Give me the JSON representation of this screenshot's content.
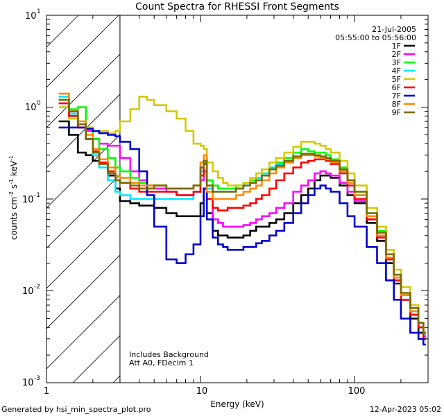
{
  "chart_data": {
    "type": "line",
    "title": "Count Spectra for RHESSI Front Segments",
    "xlabel": "Energy (keV)",
    "ylabel": "counts cm^-2 s^-1 keV^-1",
    "xscale": "log",
    "yscale": "log",
    "xlim": [
      1,
      300
    ],
    "ylim": [
      0.001,
      10
    ],
    "x_ticks": [
      1,
      10,
      100
    ],
    "x_tick_labels": [
      "1",
      "10",
      "100"
    ],
    "y_ticks": [
      0.001,
      0.01,
      0.1,
      1,
      10
    ],
    "y_tick_labels": [
      {
        "base": "10",
        "exp": "-3"
      },
      {
        "base": "10",
        "exp": "-2"
      },
      {
        "base": "10",
        "exp": "-1"
      },
      {
        "base": "10",
        "exp": "0"
      },
      {
        "base": "10",
        "exp": "1"
      }
    ],
    "attenuated_region_xmax": 3,
    "date": "21-Jul-2005",
    "time_range": "05:55:00 to 05:56:00",
    "annotations": [
      "Includes Background",
      "Att A0, FDecim 1"
    ],
    "series": [
      {
        "name": "1F",
        "color": "#000000",
        "x": [
          1.2,
          1.4,
          1.6,
          1.8,
          2,
          2.2,
          2.5,
          2.8,
          3,
          3.5,
          4,
          4.5,
          5,
          6,
          7,
          8,
          9,
          10,
          10.5,
          11,
          12,
          13,
          14,
          15,
          17,
          19,
          21,
          23,
          25,
          28,
          31,
          35,
          40,
          45,
          50,
          55,
          60,
          65,
          70,
          80,
          90,
          100,
          120,
          140,
          160,
          180,
          200,
          230,
          260,
          280
        ],
        "y": [
          0.7,
          0.5,
          0.32,
          0.3,
          0.26,
          0.25,
          0.18,
          0.13,
          0.095,
          0.09,
          0.085,
          0.085,
          0.08,
          0.07,
          0.065,
          0.065,
          0.065,
          0.09,
          0.13,
          0.07,
          0.045,
          0.04,
          0.04,
          0.038,
          0.038,
          0.04,
          0.045,
          0.05,
          0.05,
          0.055,
          0.06,
          0.07,
          0.09,
          0.11,
          0.13,
          0.16,
          0.18,
          0.18,
          0.17,
          0.14,
          0.11,
          0.09,
          0.055,
          0.035,
          0.02,
          0.012,
          0.008,
          0.005,
          0.0035,
          0.003
        ]
      },
      {
        "name": "2F",
        "color": "#ff00ff",
        "x": [
          1.2,
          1.4,
          1.6,
          1.8,
          2,
          2.2,
          2.5,
          2.8,
          3,
          3.5,
          4,
          4.5,
          5,
          6,
          7,
          8,
          9,
          10,
          10.5,
          11,
          12,
          13,
          14,
          15,
          17,
          19,
          21,
          23,
          25,
          28,
          31,
          35,
          40,
          45,
          50,
          55,
          60,
          65,
          70,
          80,
          90,
          100,
          120,
          140,
          160,
          180,
          200,
          230,
          260,
          280
        ],
        "y": [
          1.1,
          0.85,
          0.6,
          0.55,
          0.45,
          0.4,
          0.38,
          0.38,
          0.28,
          0.2,
          0.16,
          0.14,
          0.13,
          0.12,
          0.11,
          0.11,
          0.12,
          0.16,
          0.2,
          0.1,
          0.06,
          0.055,
          0.05,
          0.05,
          0.05,
          0.052,
          0.055,
          0.06,
          0.065,
          0.07,
          0.08,
          0.09,
          0.12,
          0.14,
          0.16,
          0.19,
          0.2,
          0.19,
          0.18,
          0.15,
          0.12,
          0.095,
          0.06,
          0.038,
          0.022,
          0.013,
          0.008,
          0.0055,
          0.004,
          0.0032
        ]
      },
      {
        "name": "3F",
        "color": "#00ff00",
        "x": [
          1.2,
          1.4,
          1.6,
          1.8,
          2,
          2.2,
          2.5,
          2.8,
          3,
          3.5,
          4,
          4.5,
          5,
          6,
          7,
          8,
          9,
          10,
          10.5,
          11,
          12,
          13,
          14,
          15,
          17,
          19,
          21,
          23,
          25,
          28,
          31,
          35,
          40,
          45,
          50,
          55,
          60,
          65,
          70,
          80,
          90,
          100,
          120,
          140,
          160,
          180,
          200,
          230,
          260,
          280
        ],
        "y": [
          1.2,
          0.95,
          1.0,
          0.6,
          0.45,
          0.35,
          0.28,
          0.22,
          0.2,
          0.17,
          0.15,
          0.14,
          0.14,
          0.13,
          0.13,
          0.13,
          0.14,
          0.2,
          0.25,
          0.16,
          0.14,
          0.13,
          0.13,
          0.13,
          0.14,
          0.15,
          0.16,
          0.17,
          0.19,
          0.22,
          0.25,
          0.28,
          0.32,
          0.35,
          0.33,
          0.32,
          0.32,
          0.3,
          0.27,
          0.22,
          0.16,
          0.12,
          0.07,
          0.045,
          0.025,
          0.015,
          0.009,
          0.006,
          0.004,
          0.0033
        ]
      },
      {
        "name": "4F",
        "color": "#00e5ff",
        "x": [
          1.2,
          1.4,
          1.6,
          1.8,
          2,
          2.2,
          2.5,
          2.8,
          3,
          3.5,
          4,
          4.5,
          5,
          6,
          7,
          8,
          9,
          10,
          10.5,
          11,
          12,
          13,
          14,
          15,
          17,
          19,
          21,
          23,
          25,
          28,
          31,
          35,
          40,
          45,
          50,
          55,
          60,
          65,
          70,
          80,
          90,
          100,
          120,
          140,
          160,
          180,
          200,
          230,
          260,
          280
        ],
        "y": [
          1.3,
          0.85,
          0.65,
          0.45,
          0.3,
          0.22,
          0.16,
          0.12,
          0.11,
          0.1,
          0.1,
          0.1,
          0.1,
          0.1,
          0.1,
          0.1,
          0.12,
          0.2,
          0.25,
          0.13,
          0.12,
          0.12,
          0.12,
          0.12,
          0.13,
          0.14,
          0.15,
          0.17,
          0.19,
          0.22,
          0.24,
          0.26,
          0.28,
          0.3,
          0.3,
          0.29,
          0.28,
          0.27,
          0.25,
          0.2,
          0.15,
          0.11,
          0.065,
          0.04,
          0.023,
          0.014,
          0.009,
          0.006,
          0.004,
          0.0033
        ]
      },
      {
        "name": "5F",
        "color": "#d4c900",
        "x": [
          1.2,
          1.4,
          1.6,
          1.8,
          2,
          2.2,
          2.5,
          2.8,
          3,
          3.5,
          4,
          4.5,
          5,
          6,
          7,
          8,
          9,
          10,
          10.5,
          11,
          12,
          13,
          14,
          15,
          17,
          19,
          21,
          23,
          25,
          28,
          31,
          35,
          40,
          45,
          50,
          55,
          60,
          65,
          70,
          80,
          90,
          100,
          120,
          140,
          160,
          180,
          200,
          230,
          260,
          280
        ],
        "y": [
          1.0,
          0.75,
          0.6,
          0.6,
          0.55,
          0.55,
          0.52,
          0.55,
          0.7,
          0.95,
          1.3,
          1.2,
          1.05,
          0.9,
          0.75,
          0.55,
          0.4,
          0.38,
          0.35,
          0.25,
          0.2,
          0.17,
          0.15,
          0.14,
          0.14,
          0.15,
          0.17,
          0.19,
          0.21,
          0.25,
          0.28,
          0.32,
          0.37,
          0.42,
          0.42,
          0.4,
          0.38,
          0.35,
          0.32,
          0.26,
          0.19,
          0.14,
          0.08,
          0.05,
          0.028,
          0.017,
          0.011,
          0.007,
          0.0045,
          0.0035
        ]
      },
      {
        "name": "6F",
        "color": "#ff0000",
        "x": [
          1.2,
          1.4,
          1.6,
          1.8,
          2,
          2.2,
          2.5,
          2.8,
          3,
          3.5,
          4,
          4.5,
          5,
          6,
          7,
          8,
          9,
          10,
          10.5,
          11,
          12,
          13,
          14,
          15,
          17,
          19,
          21,
          23,
          25,
          28,
          31,
          35,
          40,
          45,
          50,
          55,
          60,
          65,
          70,
          80,
          90,
          100,
          120,
          140,
          160,
          180,
          200,
          230,
          260,
          280
        ],
        "y": [
          1.1,
          0.8,
          0.6,
          0.45,
          0.33,
          0.25,
          0.2,
          0.16,
          0.15,
          0.13,
          0.12,
          0.12,
          0.12,
          0.12,
          0.11,
          0.11,
          0.12,
          0.18,
          0.24,
          0.1,
          0.08,
          0.075,
          0.075,
          0.08,
          0.08,
          0.085,
          0.09,
          0.1,
          0.11,
          0.13,
          0.16,
          0.19,
          0.22,
          0.25,
          0.26,
          0.27,
          0.27,
          0.26,
          0.24,
          0.19,
          0.14,
          0.1,
          0.06,
          0.038,
          0.022,
          0.013,
          0.008,
          0.0055,
          0.004,
          0.003
        ]
      },
      {
        "name": "7F",
        "color": "#0000cc",
        "x": [
          1.2,
          1.4,
          1.6,
          1.8,
          2,
          2.2,
          2.5,
          2.8,
          3,
          3.5,
          4,
          4.5,
          5,
          6,
          7,
          8,
          9,
          10,
          10.5,
          11,
          12,
          13,
          14,
          15,
          17,
          19,
          21,
          23,
          25,
          28,
          31,
          35,
          40,
          45,
          50,
          55,
          60,
          65,
          70,
          80,
          90,
          100,
          120,
          140,
          160,
          180,
          200,
          230,
          260,
          280
        ],
        "y": [
          0.6,
          0.6,
          0.6,
          0.58,
          0.55,
          0.52,
          0.5,
          0.48,
          0.42,
          0.35,
          0.2,
          0.11,
          0.05,
          0.022,
          0.02,
          0.025,
          0.032,
          0.065,
          0.13,
          0.06,
          0.038,
          0.032,
          0.03,
          0.028,
          0.028,
          0.03,
          0.03,
          0.033,
          0.035,
          0.04,
          0.045,
          0.055,
          0.07,
          0.09,
          0.11,
          0.13,
          0.14,
          0.13,
          0.12,
          0.09,
          0.065,
          0.05,
          0.03,
          0.02,
          0.013,
          0.008,
          0.005,
          0.0035,
          0.003,
          0.0026
        ]
      },
      {
        "name": "8F",
        "color": "#ff8800",
        "x": [
          1.2,
          1.4,
          1.6,
          1.8,
          2,
          2.2,
          2.5,
          2.8,
          3,
          3.5,
          4,
          4.5,
          5,
          6,
          7,
          8,
          9,
          10,
          10.5,
          11,
          12,
          13,
          14,
          15,
          17,
          19,
          21,
          23,
          25,
          28,
          31,
          35,
          40,
          45,
          50,
          55,
          60,
          65,
          70,
          80,
          90,
          100,
          120,
          140,
          160,
          180,
          200,
          230,
          260,
          280
        ],
        "y": [
          1.4,
          0.9,
          0.7,
          0.5,
          0.35,
          0.27,
          0.22,
          0.18,
          0.17,
          0.15,
          0.14,
          0.14,
          0.14,
          0.13,
          0.13,
          0.13,
          0.14,
          0.25,
          0.3,
          0.12,
          0.1,
          0.1,
          0.1,
          0.1,
          0.11,
          0.12,
          0.13,
          0.14,
          0.16,
          0.19,
          0.22,
          0.25,
          0.28,
          0.3,
          0.3,
          0.29,
          0.28,
          0.27,
          0.25,
          0.2,
          0.15,
          0.11,
          0.065,
          0.04,
          0.023,
          0.014,
          0.009,
          0.006,
          0.0045,
          0.0035
        ]
      },
      {
        "name": "9F",
        "color": "#7a6a00",
        "x": [
          1.2,
          1.4,
          1.6,
          1.8,
          2,
          2.2,
          2.5,
          2.8,
          3,
          3.5,
          4,
          4.5,
          5,
          6,
          7,
          8,
          9,
          10,
          10.5,
          11,
          12,
          13,
          14,
          15,
          17,
          19,
          21,
          23,
          25,
          28,
          31,
          35,
          40,
          45,
          50,
          55,
          60,
          65,
          70,
          80,
          90,
          100,
          120,
          140,
          160,
          180,
          200,
          230,
          260,
          280
        ],
        "y": [
          1.2,
          0.9,
          0.65,
          0.45,
          0.32,
          0.24,
          0.19,
          0.16,
          0.15,
          0.14,
          0.13,
          0.13,
          0.14,
          0.13,
          0.13,
          0.13,
          0.14,
          0.22,
          0.26,
          0.14,
          0.12,
          0.12,
          0.12,
          0.12,
          0.13,
          0.14,
          0.15,
          0.16,
          0.18,
          0.21,
          0.23,
          0.26,
          0.29,
          0.31,
          0.31,
          0.3,
          0.29,
          0.28,
          0.26,
          0.21,
          0.16,
          0.12,
          0.07,
          0.043,
          0.025,
          0.015,
          0.0095,
          0.0065,
          0.0045,
          0.0035
        ]
      }
    ]
  },
  "footer": {
    "generated_by": "Generated by hsi_min_spectra_plot.pro",
    "timestamp": "12-Apr-2023 05:02"
  }
}
